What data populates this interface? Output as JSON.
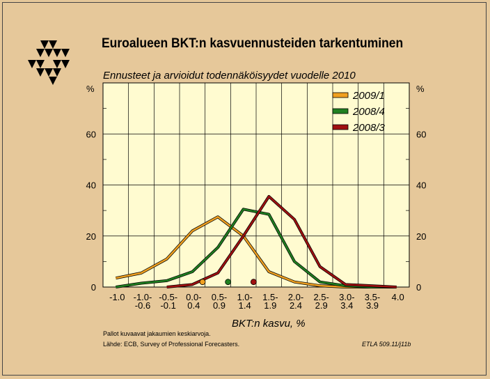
{
  "header": {
    "title": "Euroalueen BKT:n kasvuennusteiden tarkentuminen",
    "subtitle": "Ennusteet ja arvioidut todennäköisyydet vuodelle 2010"
  },
  "footer": {
    "note": "Pallot kuvaavat jakaumien keskiarvoja.",
    "source": "Lähde:   ECB, Survey of Professional Forecasters.",
    "code": "ETLA 509.11/j11b"
  },
  "colors": {
    "background": "#e6c89a",
    "plot_background": "#fffbd0",
    "s2009_1": "#f0a020",
    "s2008_4": "#208020",
    "s2008_3": "#a01010"
  },
  "chart_data": {
    "type": "line",
    "title": "Euroalueen BKT:n kasvuennusteiden tarkentuminen",
    "subtitle": "Ennusteet ja arvioidut todennäköisyydet vuodelle 2010",
    "xlabel": "BKT:n kasvu, %",
    "ylabel": "%",
    "ylabel_right": "%",
    "categories": [
      [
        "-1.0",
        ""
      ],
      [
        "-1.0-",
        "-0.6"
      ],
      [
        "-0.5-",
        "-0.1"
      ],
      [
        "0.0-",
        "0.4"
      ],
      [
        "0.5-",
        "0.9"
      ],
      [
        "1.0-",
        "1.4"
      ],
      [
        "1.5-",
        "1.9"
      ],
      [
        "2.0-",
        "2.4"
      ],
      [
        "2.5-",
        "2.9"
      ],
      [
        "3.0-",
        "3.4"
      ],
      [
        "3.5-",
        "3.9"
      ],
      [
        "4.0",
        ""
      ]
    ],
    "ylim": [
      0,
      80
    ],
    "yticks": [
      0,
      20,
      40,
      60
    ],
    "grid": true,
    "legend_position": "top-right",
    "series": [
      {
        "name": "2009/1",
        "color": "#f0a020",
        "values": [
          3.5,
          5.5,
          11,
          22,
          27.5,
          20,
          6,
          2,
          0.5,
          0,
          0,
          0
        ]
      },
      {
        "name": "2008/4",
        "color": "#208020",
        "values": [
          0,
          1.5,
          2.5,
          6,
          15.5,
          30.5,
          28.5,
          10,
          2,
          0.5,
          0,
          0
        ]
      },
      {
        "name": "2008/3",
        "color": "#a01010",
        "values": [
          null,
          null,
          0,
          1,
          5.5,
          20,
          35.5,
          26.5,
          8,
          1,
          0.5,
          0
        ]
      }
    ],
    "means": [
      {
        "series": "2009/1",
        "x": 0.7,
        "y": 2
      },
      {
        "series": "2008/4",
        "x": 1.2,
        "y": 2
      },
      {
        "series": "2008/3",
        "x": 1.7,
        "y": 2
      }
    ]
  }
}
